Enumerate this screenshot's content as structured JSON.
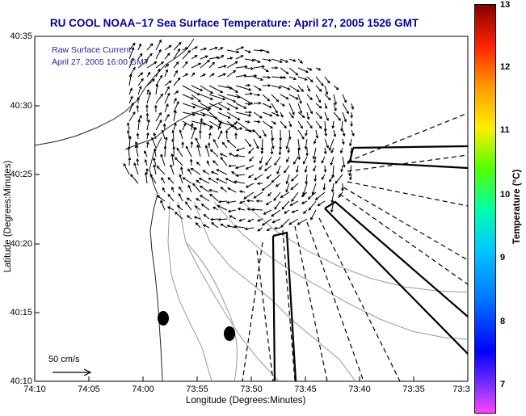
{
  "title": "RU COOL  NOAA−17  Sea Surface Temperature:  April 27, 2005 1526 GMT",
  "annotation": {
    "line1": "Raw Surface Current:",
    "line2": "April 27, 2005 16:00 GMT"
  },
  "scale_label": "50 cm/s",
  "axes": {
    "xlabel": "Longitude (Degrees:Minutes)",
    "ylabel": "Latitude (Degrees:Minutes)",
    "x_ticks": [
      "74:10",
      "74:05",
      "74:00",
      "73:55",
      "73:50",
      "73:45",
      "73:40",
      "73:35",
      "73:3"
    ],
    "y_ticks": [
      "40:35",
      "40:30",
      "40:25",
      "40:20",
      "40:15",
      "40:10"
    ]
  },
  "colorbar": {
    "label": "Temperature (°C)",
    "ticks": [
      "13",
      "12",
      "11",
      "10",
      "9",
      "8",
      "7"
    ]
  },
  "colors": {
    "title": "#0000aa",
    "annotation": "#2222aa",
    "land": "#ffffff"
  }
}
